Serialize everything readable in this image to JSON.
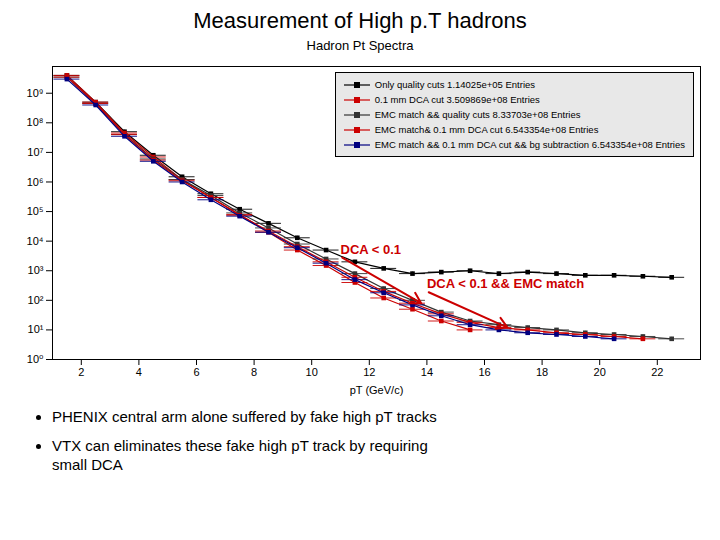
{
  "chart_data": {
    "type": "line",
    "title": "Measurement of High p.T hadrons",
    "subtitle": "Hadron Pt Spectra",
    "xlabel": "pT (GeV/c)",
    "bullets": [
      "PHENIX central arm alone suffered by fake high pT tracks",
      "VTX can eliminates these fake high pT track by requiring\nsmall DCA"
    ],
    "x": [
      1.5,
      2.5,
      3.5,
      4.5,
      5.5,
      6.5,
      7.5,
      8.5,
      9.5,
      10.5,
      11.5,
      12.5,
      13.5,
      14.5,
      15.5,
      16.5,
      17.5,
      18.5,
      19.5,
      20.5,
      21.5,
      22.5
    ],
    "xlim": [
      1,
      23.5
    ],
    "xticks": [
      2,
      4,
      6,
      8,
      10,
      12,
      14,
      16,
      18,
      20,
      22
    ],
    "ylim": [
      1,
      8000000000
    ],
    "yticks": [
      {
        "value": 1,
        "label": "10⁰"
      },
      {
        "value": 10,
        "label": "10¹"
      },
      {
        "value": 100,
        "label": "10²"
      },
      {
        "value": 1000,
        "label": "10³"
      },
      {
        "value": 10000,
        "label": "10⁴"
      },
      {
        "value": 100000,
        "label": "10⁵"
      },
      {
        "value": 1000000,
        "label": "10⁶"
      },
      {
        "value": 10000000,
        "label": "10⁷"
      },
      {
        "value": 100000000,
        "label": "10⁸"
      },
      {
        "value": 1000000000,
        "label": "10⁹"
      }
    ],
    "log": "y",
    "grid": false,
    "legend": "upper right",
    "series": [
      {
        "name": "Only quality cuts 1.14025e+05 Entries",
        "color": "#000000",
        "marker": "square",
        "line_style": "solid",
        "values": [
          4000000000.0,
          500000000.0,
          50000000.0,
          8000000.0,
          1500000.0,
          400000.0,
          120000.0,
          40000.0,
          13000.0,
          5000.0,
          2000.0,
          1200.0,
          800,
          900,
          1000,
          800,
          900,
          800,
          700,
          700,
          650,
          600
        ],
        "y_errors": [
          480000000.0,
          60000000.0,
          6000000.0,
          960000.0,
          180000.0,
          48000.0,
          14400.0,
          4800.0,
          1560.0,
          600,
          240,
          144,
          96,
          108,
          120,
          96,
          108,
          96,
          84,
          84,
          78,
          72
        ],
        "x_error": 0.45
      },
      {
        "name": "0.1 mm DCA cut 3.509869e+08 Entries",
        "color": "#cc0000",
        "marker": "square",
        "line_style": "solid",
        "values": [
          4000000000.0,
          500000000.0,
          45000000.0,
          7000000.0,
          1200000.0,
          300000.0,
          80000.0,
          20000.0,
          5000.0,
          1500.0,
          400,
          120,
          50,
          20,
          10,
          null,
          null,
          null,
          null,
          null,
          null,
          null
        ],
        "y_errors": [
          480000000.0,
          60000000.0,
          5400000.0,
          840000.0,
          144000.0,
          36000.0,
          9600.0,
          2400.0,
          600,
          180,
          48,
          14.4,
          6,
          2.4,
          1.2,
          null,
          null,
          null,
          null,
          null,
          null,
          null
        ],
        "x_error": 0.45
      },
      {
        "name": "EMC match && quality cuts 8.33703e+08 Entries",
        "color": "#333333",
        "marker": "square",
        "line_style": "solid",
        "values": [
          3500000000.0,
          450000000.0,
          40000000.0,
          6000000.0,
          1200000.0,
          350000.0,
          90000.0,
          28000.0,
          8000.0,
          2500.0,
          800,
          250,
          100,
          40,
          20,
          15,
          12,
          10,
          8,
          7,
          6,
          5
        ],
        "y_errors": [
          420000000.0,
          54000000.0,
          4800000.0,
          720000.0,
          144000.0,
          42000.0,
          10800.0,
          3360.0,
          960,
          300,
          96,
          30,
          12,
          4.8,
          2.4,
          1.8,
          1.44,
          1.2,
          0.96,
          0.84,
          0.72,
          0.6
        ],
        "x_error": 0.45
      },
      {
        "name": "EMC match& 0.1 mm DCA cut 6.543354e+08 Entries",
        "color": "#cc0000",
        "marker": "square",
        "line_style": "solid",
        "values": [
          3500000000.0,
          450000000.0,
          40000000.0,
          5500000.0,
          1100000.0,
          300000.0,
          75000.0,
          22000.0,
          6500.0,
          2000.0,
          600,
          200,
          80,
          35,
          18,
          12,
          10,
          8,
          7,
          6,
          5,
          null
        ],
        "y_errors": [
          420000000.0,
          54000000.0,
          4800000.0,
          660000.0,
          132000.0,
          36000.0,
          9000.0,
          2640.0,
          780,
          240,
          72,
          24,
          9.6,
          4.2,
          2.16,
          1.44,
          1.2,
          0.96,
          0.84,
          0.72,
          0.6,
          null
        ],
        "x_error": 0.45
      },
      {
        "name": "EMC match && 0.1 mm DCA cut && bg subtraction 6.543354e+08 Entries",
        "color": "#000080",
        "marker": "square",
        "line_style": "solid",
        "values": [
          3000000000.0,
          400000000.0,
          35000000.0,
          5000000.0,
          1000000.0,
          250000.0,
          70000.0,
          20000.0,
          6000.0,
          1800.0,
          500,
          180,
          70,
          30,
          15,
          10,
          8,
          7,
          6,
          5,
          null,
          null
        ],
        "y_errors": [
          360000000.0,
          48000000.0,
          4200000.0,
          600000.0,
          120000.0,
          30000.0,
          8400.0,
          2400.0,
          720,
          216,
          60,
          21.6,
          8.4,
          3.6,
          1.8,
          1.2,
          0.96,
          0.84,
          0.72,
          0.6,
          null,
          null
        ],
        "x_error": 0.45
      }
    ],
    "annotations": [
      {
        "text": "DCA < 0.1",
        "x": 13.8,
        "y": 80,
        "text_x": 11.0,
        "text_y": 3000,
        "color": "#cc0000"
      },
      {
        "text": "DCA < 0.1 && EMC match",
        "x": 16.8,
        "y": 12,
        "text_x": 14.0,
        "text_y": 200,
        "color": "#cc0000"
      }
    ]
  }
}
